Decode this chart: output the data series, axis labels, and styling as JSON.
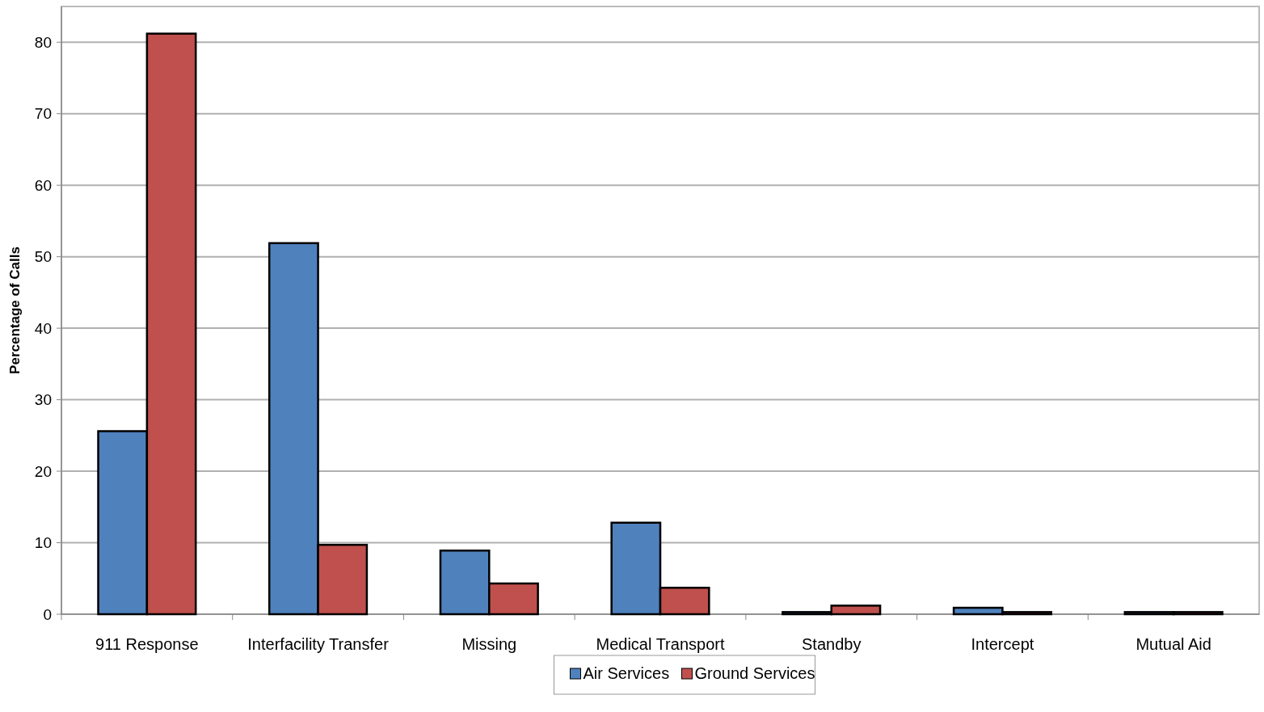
{
  "chart_data": {
    "type": "bar",
    "ylabel": "Percentage of Calls",
    "categories": [
      "911 Response",
      "Interfacility Transfer",
      "Missing",
      "Medical Transport",
      "Standby",
      "Intercept",
      "Mutual Aid"
    ],
    "series": [
      {
        "name": "Air Services",
        "color": "#4f81bd",
        "values": [
          25.6,
          51.9,
          8.9,
          12.8,
          0.3,
          0.9,
          0.3
        ]
      },
      {
        "name": "Ground Services",
        "color": "#c0504d",
        "values": [
          81.2,
          9.7,
          4.3,
          3.7,
          1.2,
          0.3,
          0.3
        ]
      }
    ],
    "ylim": [
      0,
      85
    ],
    "yticks": [
      0,
      10,
      20,
      30,
      40,
      50,
      60,
      70,
      80
    ],
    "grid": "y",
    "legend": "bottom"
  }
}
